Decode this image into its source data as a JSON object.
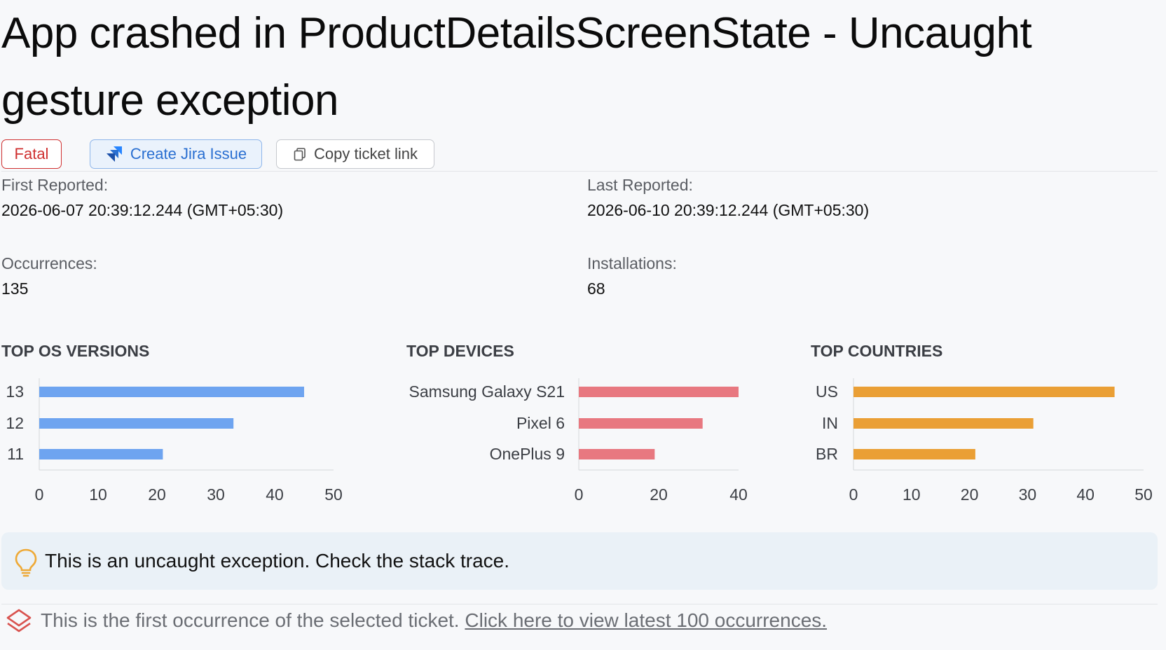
{
  "page": {
    "title": "App crashed in ProductDetailsScreenState - Uncaught gesture exception"
  },
  "toolbar": {
    "fatal_label": "Fatal",
    "jira_label": "Create Jira Issue",
    "copy_label": "Copy ticket link"
  },
  "stats": {
    "first_reported_label": "First Reported:",
    "first_reported_value": "2026-06-07 20:39:12.244 (GMT+05:30)",
    "last_reported_label": "Last Reported:",
    "last_reported_value": "2026-06-10 20:39:12.244 (GMT+05:30)",
    "occurrences_label": "Occurrences:",
    "occurrences_value": "135",
    "installations_label": "Installations:",
    "installations_value": "68"
  },
  "chart_data": [
    {
      "type": "bar",
      "orientation": "horizontal",
      "title": "TOP OS VERSIONS",
      "categories": [
        "13",
        "12",
        "11"
      ],
      "values": [
        45,
        33,
        21
      ],
      "xlim": [
        0,
        50
      ],
      "ticks": [
        0,
        10,
        20,
        30,
        40,
        50
      ],
      "color": "#6ea4f0"
    },
    {
      "type": "bar",
      "orientation": "horizontal",
      "title": "TOP DEVICES",
      "categories": [
        "Samsung Galaxy S21",
        "Pixel 6",
        "OnePlus 9"
      ],
      "values": [
        40,
        31,
        19
      ],
      "xlim": [
        0,
        40
      ],
      "ticks": [
        0,
        20,
        40
      ],
      "color": "#e87880"
    },
    {
      "type": "bar",
      "orientation": "horizontal",
      "title": "TOP COUNTRIES",
      "categories": [
        "US",
        "IN",
        "BR"
      ],
      "values": [
        45,
        31,
        21
      ],
      "xlim": [
        0,
        50
      ],
      "ticks": [
        0,
        10,
        20,
        30,
        40,
        50
      ],
      "color": "#ea9f35"
    }
  ],
  "hint": {
    "text": "This is an uncaught exception. Check the stack trace.",
    "icon": "lightbulb-icon"
  },
  "footer": {
    "text": "This is the first occurrence of the selected ticket.",
    "link": "Click here to view latest 100 occurrences.",
    "icon": "layers-icon"
  }
}
